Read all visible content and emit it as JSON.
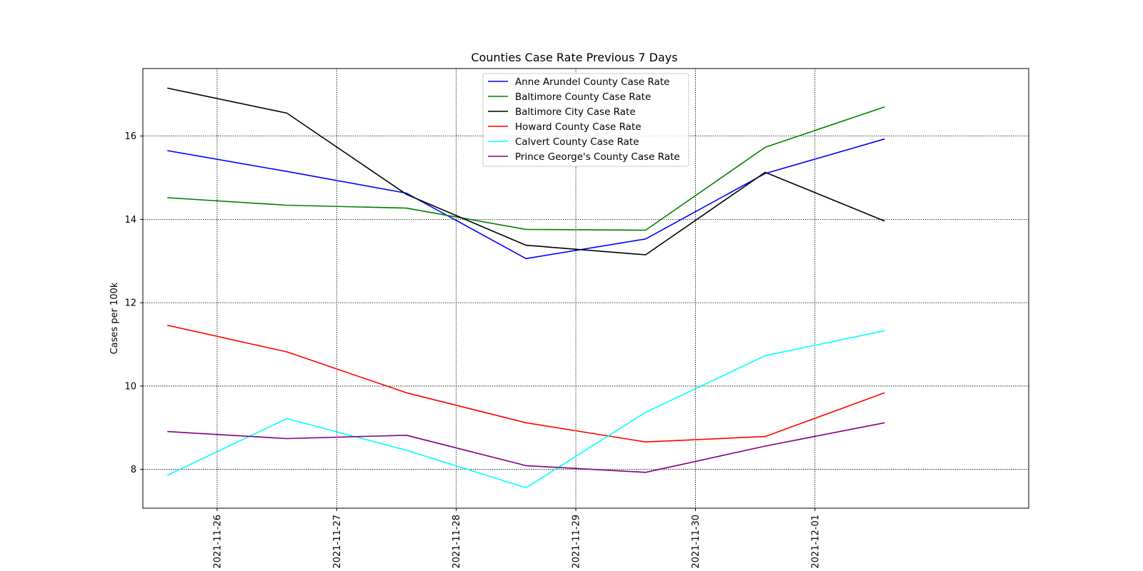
{
  "chart_data": {
    "type": "line",
    "title": "Counties Case Rate Previous 7 Days",
    "xlabel": "",
    "ylabel": "Cases per 100k",
    "x": [
      "2021-11-25T14:00",
      "2021-11-26T14:00",
      "2021-11-27T14:00",
      "2021-11-28T14:00",
      "2021-11-29T14:00",
      "2021-11-30T14:00",
      "2021-12-01T14:00"
    ],
    "xlim": [
      "2021-11-25T09:06",
      "2021-12-02T18:54"
    ],
    "xticks": [
      "2021-11-26",
      "2021-11-27",
      "2021-11-28",
      "2021-11-29",
      "2021-11-30",
      "2021-12-01"
    ],
    "ylim": [
      7.07,
      17.62
    ],
    "yticks": [
      8,
      10,
      12,
      14,
      16
    ],
    "grid": true,
    "legend_position": "upper center",
    "series": [
      {
        "name": "Anne Arundel County Case Rate",
        "color": "#0000ff",
        "values": [
          15.65,
          15.15,
          14.63,
          13.06,
          13.53,
          15.1,
          15.93
        ]
      },
      {
        "name": "Baltimore County Case Rate",
        "color": "#008000",
        "values": [
          14.52,
          14.34,
          14.27,
          13.76,
          13.74,
          15.73,
          16.7
        ]
      },
      {
        "name": "Baltimore City Case Rate",
        "color": "#000000",
        "values": [
          17.15,
          16.55,
          14.6,
          13.38,
          13.15,
          15.13,
          13.96
        ]
      },
      {
        "name": "Howard County Case Rate",
        "color": "#ff0000",
        "values": [
          11.46,
          10.82,
          9.84,
          9.12,
          8.66,
          8.79,
          9.84
        ]
      },
      {
        "name": "Calvert County Case Rate",
        "color": "#00ffff",
        "values": [
          7.86,
          9.22,
          8.46,
          7.56,
          9.37,
          10.73,
          11.33
        ]
      },
      {
        "name": "Prince George's County Case Rate",
        "color": "#800080",
        "values": [
          8.91,
          8.74,
          8.82,
          8.09,
          7.93,
          8.56,
          9.12
        ]
      }
    ]
  }
}
